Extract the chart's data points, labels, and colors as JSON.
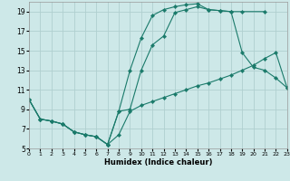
{
  "xlabel": "Humidex (Indice chaleur)",
  "xlim": [
    0,
    23
  ],
  "ylim": [
    5,
    20
  ],
  "yticks": [
    5,
    7,
    9,
    11,
    13,
    15,
    17,
    19
  ],
  "xticks": [
    0,
    1,
    2,
    3,
    4,
    5,
    6,
    7,
    8,
    9,
    10,
    11,
    12,
    13,
    14,
    15,
    16,
    17,
    18,
    19,
    20,
    21,
    22,
    23
  ],
  "bg_color": "#cde8e8",
  "grid_color": "#b0cfcf",
  "line_color": "#1a7a6a",
  "line1_x": [
    0,
    1,
    2,
    3,
    4,
    5,
    6,
    7,
    8,
    9,
    10,
    11,
    12,
    13,
    14,
    15,
    16,
    17,
    18,
    19,
    21
  ],
  "line1_y": [
    10.0,
    8.0,
    7.8,
    7.5,
    6.7,
    6.4,
    6.2,
    5.4,
    8.8,
    13.0,
    16.3,
    18.6,
    19.2,
    19.5,
    19.7,
    19.8,
    19.2,
    19.1,
    19.0,
    19.0,
    19.0
  ],
  "line2_x": [
    0,
    1,
    2,
    3,
    4,
    5,
    6,
    7,
    8,
    9,
    10,
    11,
    12,
    13,
    14,
    15,
    16,
    17,
    18,
    19,
    20,
    21,
    22,
    23
  ],
  "line2_y": [
    10.0,
    8.0,
    7.8,
    7.5,
    6.7,
    6.4,
    6.2,
    5.4,
    8.8,
    9.0,
    13.0,
    15.6,
    16.5,
    18.9,
    19.2,
    19.5,
    19.2,
    19.1,
    19.0,
    14.8,
    13.3,
    13.0,
    12.2,
    11.2
  ],
  "line3_x": [
    0,
    1,
    2,
    3,
    4,
    5,
    6,
    7,
    8,
    9,
    10,
    11,
    12,
    13,
    14,
    15,
    16,
    17,
    18,
    19,
    20,
    21,
    22,
    23
  ],
  "line3_y": [
    10.0,
    8.0,
    7.8,
    7.5,
    6.7,
    6.4,
    6.2,
    5.4,
    6.4,
    8.8,
    9.4,
    9.8,
    10.2,
    10.6,
    11.0,
    11.4,
    11.7,
    12.1,
    12.5,
    13.0,
    13.5,
    14.2,
    14.8,
    11.2
  ]
}
